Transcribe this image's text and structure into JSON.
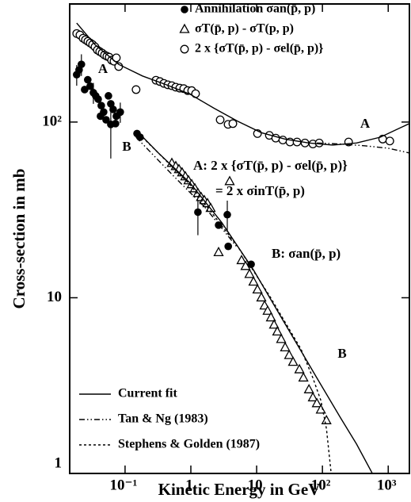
{
  "chart_data": {
    "type": "scatter",
    "x_label": "Kinetic Energy in GeV",
    "y_label": "Cross-section in mb",
    "log_x": true,
    "log_y": true,
    "xlim": [
      0.0144,
      2100
    ],
    "ylim": [
      1,
      470
    ],
    "xticks": [
      {
        "value": 0.1,
        "label": "10⁻¹"
      },
      1,
      10,
      {
        "value": 100,
        "label": "10²"
      },
      {
        "value": 1000,
        "label": "10³"
      }
    ],
    "yticks": [
      1,
      10,
      {
        "value": 100,
        "label": "10²"
      }
    ],
    "annotations": [
      "A",
      "B",
      "A",
      "B",
      "A:  2 x {σT(p̄, p) - σel(p̄, p)}",
      "= 2 x σinT(p̄, p)",
      "B:  σan(p̄, p)"
    ],
    "series": [
      {
        "name": "Annihilation  σan(p̄, p)",
        "kind": "points",
        "marker": "filled-circle",
        "color": "#000000",
        "x": [
          0.0184,
          0.02,
          0.0217,
          0.0243,
          0.0271,
          0.0295,
          0.033,
          0.0358,
          0.039,
          0.0435,
          0.0473,
          0.0514,
          0.0559,
          0.0607,
          0.066,
          0.0737,
          0.0423,
          0.0607,
          0.0717,
          0.0846,
          0.152,
          0.169,
          1.28,
          2.64,
          3.58,
          3.7,
          8.24
        ],
        "values": [
          186,
          198,
          213,
          153,
          174,
          160,
          147,
          141,
          135,
          124,
          114,
          103,
          141,
          127,
          118,
          108,
          108,
          97,
          98,
          114,
          86,
          82,
          30.7,
          25.9,
          29.7,
          19.6,
          15.5
        ],
        "errors": [
          25,
          null,
          30,
          null,
          null,
          null,
          20,
          null,
          null,
          null,
          null,
          null,
          null,
          null,
          null,
          null,
          null,
          35,
          null,
          15,
          null,
          null,
          8,
          null,
          6,
          null,
          null
        ]
      },
      {
        "name": "σT(p̄, p) - σT(p, p)",
        "kind": "points",
        "marker": "open-triangle",
        "color": "#000000",
        "x": [
          0.514,
          0.59,
          0.659,
          0.736,
          0.824,
          0.921,
          1.03,
          1.15,
          1.28,
          1.43,
          1.6,
          1.79,
          2.0,
          3.89,
          2.64,
          5.9,
          6.78,
          7.79,
          8.95,
          10.3,
          11.8,
          13.2,
          14.7,
          16.5,
          18.4,
          20.6,
          23.6,
          27.1,
          31.2,
          35.8,
          44.7,
          51.4,
          62.4,
          71.6,
          82.3,
          94.6,
          115
        ],
        "values": [
          58.3,
          55.9,
          53.7,
          51.5,
          48.9,
          46.4,
          44.1,
          41.8,
          39.3,
          37.3,
          35.8,
          34.4,
          32.3,
          45.9,
          18.1,
          16.3,
          15.1,
          13.6,
          12.3,
          11.1,
          10.0,
          9.0,
          8.4,
          7.7,
          7.0,
          6.4,
          5.8,
          5.2,
          4.7,
          4.3,
          3.9,
          3.5,
          3.0,
          2.7,
          2.5,
          2.3,
          2.0
        ]
      },
      {
        "name": "2 x {σT(p̄, p) - σel(p̄, p)}",
        "kind": "points",
        "marker": "open-circle",
        "color": "#000000",
        "x": [
          0.0184,
          0.0206,
          0.023,
          0.025,
          0.0272,
          0.0295,
          0.0321,
          0.0349,
          0.0379,
          0.0412,
          0.0448,
          0.0487,
          0.0529,
          0.0574,
          0.0624,
          0.0678,
          0.0737,
          0.08,
          0.147,
          0.295,
          0.339,
          0.389,
          0.447,
          0.514,
          0.59,
          0.678,
          0.779,
          0.895,
          1.03,
          1.18,
          2.79,
          3.68,
          4.35,
          10.3,
          15.6,
          19.5,
          25.0,
          32.1,
          41.1,
          54.3,
          71.6,
          89.5,
          250,
          824,
          1057
        ],
        "values": [
          319,
          313,
          300,
          294,
          288,
          282,
          276,
          268,
          257,
          252,
          247,
          241,
          237,
          234,
          225,
          222,
          232,
          207,
          153,
          173,
          170,
          166,
          163,
          161,
          158,
          156,
          155,
          151,
          151,
          145,
          103,
          97,
          98,
          86,
          84,
          81,
          79,
          77,
          77,
          76,
          75,
          76,
          77,
          80,
          78
        ]
      },
      {
        "name": "Current fit",
        "kind": "line",
        "dash": "solid",
        "color": "#000000",
        "x": [
          0.0184,
          0.0349,
          0.0801,
          0.184,
          0.423,
          0.973,
          2.24,
          5.14,
          11.8,
          27.1,
          62.4,
          143,
          330,
          758,
          2100,
          null,
          0.16,
          0.321,
          0.973,
          2.95,
          8.95,
          27.1,
          82.3,
          189,
          330,
          574
        ],
        "values": [
          366,
          276,
          213,
          183,
          163,
          144,
          120,
          101,
          87,
          80,
          76,
          74,
          76,
          82,
          98,
          null,
          87,
          66.7,
          45.0,
          26.8,
          14.4,
          7.1,
          3.5,
          2.07,
          1.47,
          1
        ]
      },
      {
        "name": "Tan & Ng (1983)",
        "kind": "line",
        "dash": "dash-dot",
        "color": "#000000",
        "x": [
          0.147,
          0.558,
          1.69,
          5.14,
          null,
          82.3,
          189,
          435,
          1000,
          2100
        ],
        "values": [
          82,
          48.9,
          32.3,
          19.2,
          null,
          76,
          75,
          73.3,
          71,
          66.7
        ]
      },
      {
        "name": "Stephens & Golden (1987)",
        "kind": "line",
        "dash": "dashed",
        "color": "#000000",
        "x": [
          0.184,
          0.973,
          5.14,
          15.6,
          47.3,
          71.6,
          94.6,
          115,
          136
        ],
        "values": [
          82,
          44.1,
          19.6,
          10.3,
          5.1,
          3.5,
          2.6,
          1.8,
          1
        ]
      }
    ]
  }
}
